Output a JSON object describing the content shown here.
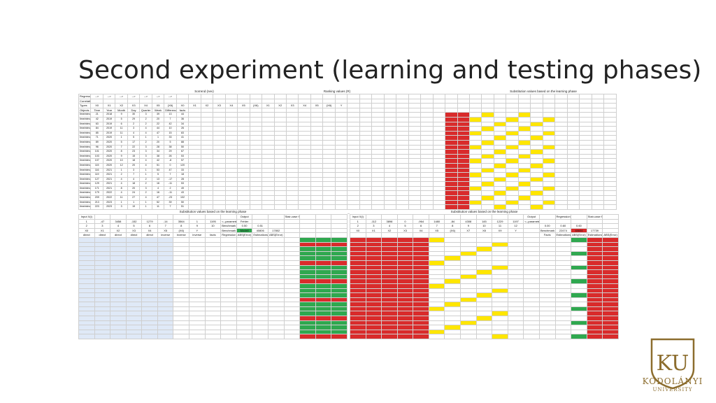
{
  "slide": {
    "title": "Second experiment (learning and testing phases)"
  },
  "top_panel": {
    "section_titles": [
      "Sorrend (nev)",
      "Ranking values (R)",
      "Substitution values based on the learning phase"
    ],
    "output_label": "Output",
    "regression_label": "Regression",
    "stair_label": "Stair-case function",
    "input_label": "Input X(i)",
    "row_labels": [
      "Objects",
      "Regression connections",
      "Correlations",
      "Types",
      "Objects"
    ],
    "col_headers": [
      "X0",
      "X1",
      "X2",
      "X3",
      "X4",
      "X5",
      "(X6)",
      "X0",
      "X1",
      "X2",
      "X3",
      "X4",
      "X5",
      "(X6)",
      "X1",
      "X2",
      "X3",
      "X4",
      "X5",
      "(X6)",
      "Y"
    ],
    "type_headers": [
      "Time",
      "Year",
      "Month",
      "Day",
      "Quarter",
      "Week",
      "Difference(t-Yt-1)",
      "facts"
    ],
    "rows": [
      {
        "obj": "timeinterval11",
        "t": "21",
        "v": [
          "2018",
          "9",
          "30",
          "3",
          "39",
          "13",
          "44"
        ]
      },
      {
        "obj": "timeinterval02",
        "t": "42",
        "v": [
          "2019",
          "5",
          "29",
          "2",
          "20",
          "7",
          "36"
        ]
      },
      {
        "obj": "timeinterval03",
        "t": "63",
        "v": [
          "2019",
          "6",
          "2",
          "2",
          "22",
          "42",
          "34"
        ]
      },
      {
        "obj": "timeinterval04",
        "t": "84",
        "v": [
          "2019",
          "11",
          "3",
          "4",
          "44",
          "10",
          "26"
        ]
      },
      {
        "obj": "timeinterval05",
        "t": "85",
        "v": [
          "2019",
          "11",
          "4",
          "4",
          "47",
          "15",
          "83"
        ]
      },
      {
        "obj": "timeinterval71",
        "t": "71",
        "v": [
          "2020",
          "1",
          "5",
          "1",
          "1",
          "33",
          "41"
        ]
      },
      {
        "obj": "timeinterval89",
        "t": "89",
        "v": [
          "2020",
          "5",
          "17",
          "2",
          "20",
          "5",
          "88"
        ]
      },
      {
        "obj": "timeinterval98",
        "t": "96",
        "v": [
          "2020",
          "7",
          "22",
          "3",
          "28",
          "38",
          "50"
        ]
      },
      {
        "obj": "timeinterval101",
        "t": "101",
        "v": [
          "2020",
          "8",
          "23",
          "3",
          "34",
          "29",
          "67"
        ]
      },
      {
        "obj": "timeinterval103",
        "t": "103",
        "v": [
          "2020",
          "9",
          "15",
          "3",
          "38",
          "26",
          "53"
        ]
      },
      {
        "obj": "timeinterval107",
        "t": "107",
        "v": [
          "2020",
          "10",
          "18",
          "4",
          "42",
          "-8",
          "57"
        ]
      },
      {
        "obj": "timeinterval115",
        "t": "115",
        "v": [
          "2020",
          "12",
          "20",
          "4",
          "51",
          "0",
          "120"
        ]
      },
      {
        "obj": "timeinterval116",
        "t": "116",
        "v": [
          "2021",
          "1",
          "3",
          "1",
          "53",
          "47",
          "33"
        ]
      },
      {
        "obj": "timeinterval119",
        "t": "119",
        "v": [
          "2021",
          "2",
          "7",
          "1",
          "5",
          "7",
          "18"
        ]
      },
      {
        "obj": "timeinterval127",
        "t": "127",
        "v": [
          "2021",
          "4",
          "4",
          "2",
          "13",
          "-17",
          "28"
        ]
      },
      {
        "obj": "timeinterval129",
        "t": "129",
        "v": [
          "2021",
          "4",
          "18",
          "2",
          "16",
          "-11",
          "53"
        ]
      },
      {
        "obj": "timeinterval171",
        "t": "171",
        "v": [
          "2021",
          "8",
          "20",
          "3",
          "4",
          "2",
          "49"
        ]
      },
      {
        "obj": "timeinterval179",
        "t": "179",
        "v": [
          "2022",
          "4",
          "24",
          "2",
          "16",
          "-11",
          "43"
        ]
      },
      {
        "obj": "timeinterval209",
        "t": "209",
        "v": [
          "2022",
          "11",
          "27",
          "4",
          "47",
          "-23",
          "102"
        ]
      },
      {
        "obj": "timeinterval213",
        "t": "213",
        "v": [
          "2023",
          "1",
          "1",
          "1",
          "52",
          "39",
          "50"
        ]
      },
      {
        "obj": "timeinterval223",
        "t": "223",
        "v": [
          "2023",
          "3",
          "19",
          "1",
          "11",
          "7",
          "51"
        ]
      },
      {
        "obj": "timeinterval238",
        "t": "238",
        "v": [
          "2023",
          "7",
          "9",
          "3",
          "27",
          "26",
          "58"
        ]
      }
    ]
  },
  "bottom_left": {
    "title": "Substitution values based on the learning phase",
    "input_label": "Input X(i)",
    "output_label": "Output",
    "stair_label": "Stair-case function",
    "param_row": [
      "1",
      "-47",
      "3458",
      "-152",
      "1279",
      "-14",
      "3564",
      "1",
      "1195"
    ],
    "params_label": "<--parameters",
    "fehler_label": "Fehler",
    "num_row": [
      "2",
      "3",
      "4",
      "5",
      "6",
      "7",
      "8",
      "9",
      "10"
    ],
    "benchmark_label": "Benchmark",
    "modell_label": "Modell",
    "err_vals": [
      "0.50",
      "0.51"
    ],
    "err_codes": [
      "40806",
      "17802"
    ],
    "hdr_types": [
      "X0",
      "X1",
      "X2",
      "X3",
      "X4",
      "X5",
      "(X6)",
      "Y"
    ],
    "hdr_dir": [
      "direct",
      "direct",
      "direct",
      "direct",
      "direct",
      "inverse",
      "inverse",
      "inverse",
      "facts"
    ],
    "hdr_extra": [
      "Regression",
      "ABS(Error)",
      "Estimations",
      "ABS(Error)"
    ]
  },
  "bottom_right": {
    "title": "Substitution values based on the learning phase",
    "input_label": "Input X(i)",
    "output_label": "Output",
    "regression_label": "Regression",
    "stair_label": "Stair-case function",
    "param_row": [
      "1",
      "-112",
      "3898",
      "0",
      "-964",
      "1480",
      "-84",
      "4308",
      "145",
      "1229",
      "1197"
    ],
    "params_label": "<--parameters",
    "num_row": [
      "2",
      "3",
      "4",
      "5",
      "6",
      "7",
      "8",
      "9",
      "10",
      "11",
      "12"
    ],
    "benchmark_label": "Benchmark",
    "bench_vals": [
      "22474",
      "0.00"
    ],
    "model_vals": [
      "0.60",
      "0.60"
    ],
    "model_codes": [
      "48604",
      "17739"
    ],
    "hdr_types": [
      "X0",
      "X1",
      "X2",
      "X3",
      "X4",
      "X5",
      "(X6)",
      "X7",
      "X8",
      "X9",
      "Y"
    ],
    "hdr_extra": [
      "Facts",
      "Estimations",
      "ABS(Error)",
      "Estimations",
      "ABS(Error)"
    ]
  },
  "logo": {
    "initials": "KU",
    "name": "KODOLÁNYI",
    "sub": "UNIVERSITY"
  },
  "colors": {
    "highlight_yellow": "#ffe600",
    "highlight_green": "#2fa84f",
    "highlight_red": "#d92b2b",
    "logo_gold": "#8c6d2e"
  }
}
